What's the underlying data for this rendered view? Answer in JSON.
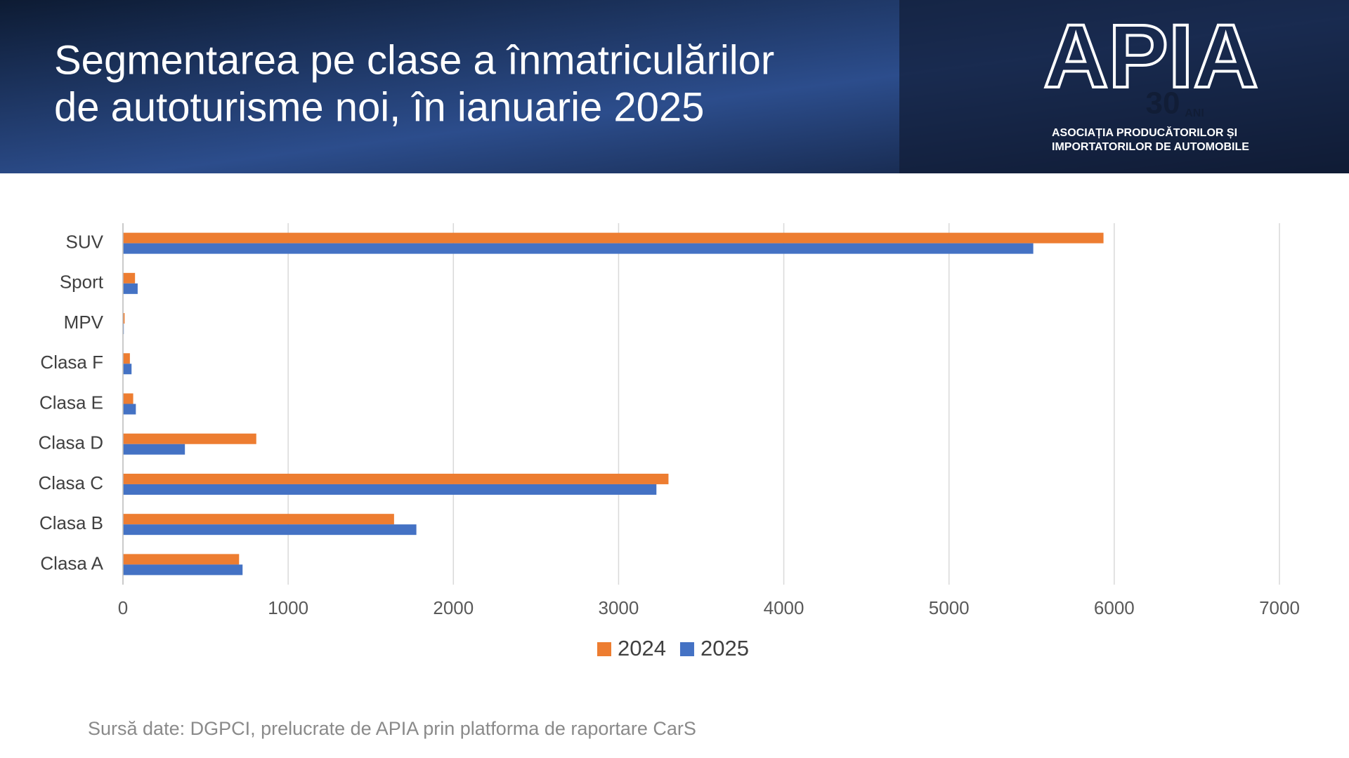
{
  "logo": {
    "name": "APIA",
    "years": "30",
    "years_unit": "ANI",
    "line1": "ASOCIAȚIA PRODUCĂTORILOR ȘI",
    "line2": "IMPORTATORILOR DE AUTOMOBILE"
  },
  "chart_data": {
    "type": "hbar",
    "title": [
      "Segmentarea pe clase a înmatriculărilor",
      "de autoturisme noi, în ianuarie 2025"
    ],
    "source": "Sursă date: DGPCI, prelucrate de APIA prin platforma de raportare CarS",
    "categories": [
      "Clasa A",
      "Clasa B",
      "Clasa C",
      "Clasa D",
      "Clasa E",
      "Clasa F",
      "MPV",
      "Sport",
      "SUV"
    ],
    "series": [
      {
        "name": "2024",
        "color": "#ed7d31",
        "values": [
          703,
          1641,
          3302,
          807,
          62,
          42,
          10,
          73,
          5935
        ]
      },
      {
        "name": "2025",
        "color": "#4472c4",
        "values": [
          724,
          1776,
          3229,
          375,
          78,
          52,
          5,
          89,
          5510
        ]
      }
    ],
    "xlim": [
      0,
      7000
    ],
    "xticks": [
      0,
      1000,
      2000,
      3000,
      4000,
      5000,
      6000,
      7000
    ],
    "grid": true,
    "legend": "bottom"
  }
}
